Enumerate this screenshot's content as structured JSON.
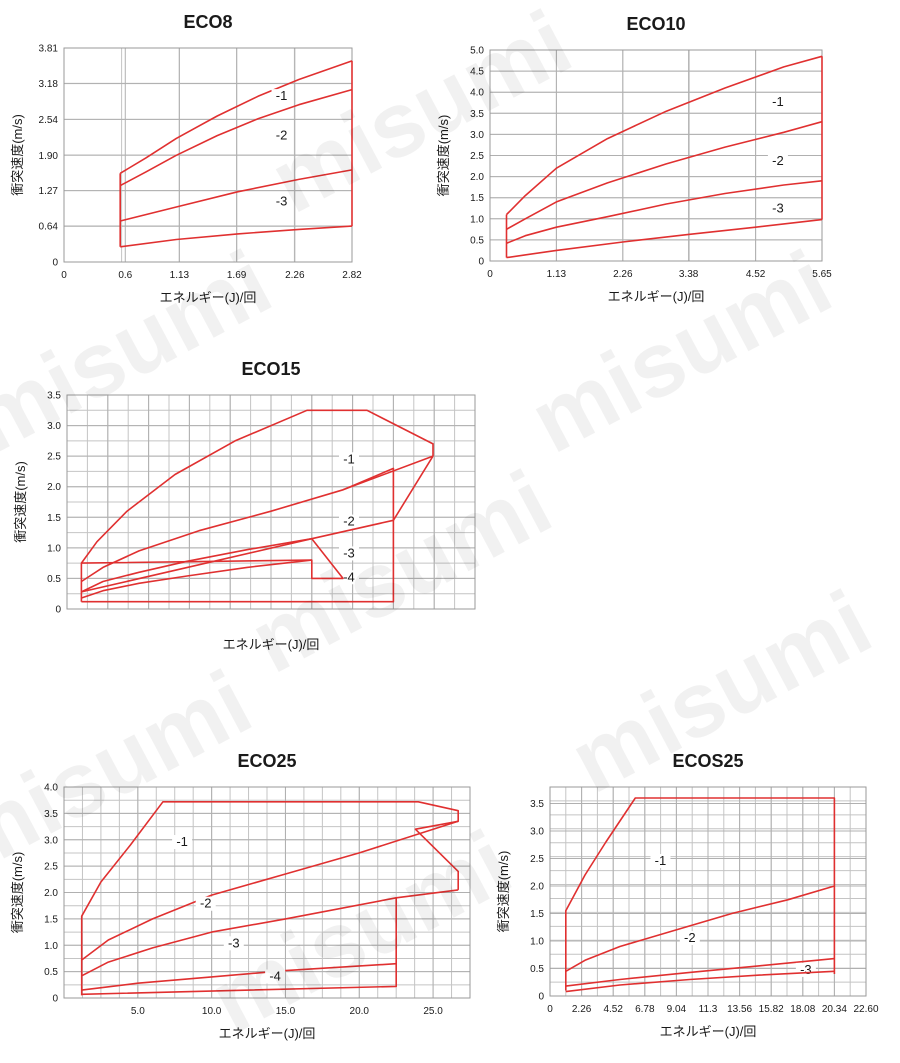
{
  "watermark": "misumi",
  "colors": {
    "curve": "#e03030",
    "grid": "#c4c4c4",
    "frame": "#9a9a9a",
    "text": "#1a1a1a"
  },
  "chart_data": [
    {
      "type": "line",
      "title": "ECO8",
      "xlabel": "エネルギー(J)/回",
      "ylabel": "衝突速度(m/s)",
      "xlim": [
        0,
        2.82
      ],
      "ylim": [
        0,
        3.81
      ],
      "xticks": [
        0,
        0.6,
        1.13,
        1.69,
        2.26,
        2.82
      ],
      "xtick_labels": [
        "0",
        "0.6",
        "1.13",
        "1.69",
        "2.26",
        "2.82"
      ],
      "yticks": [
        0,
        0.64,
        1.27,
        1.9,
        2.54,
        3.18,
        3.81
      ],
      "ytick_labels": [
        "0",
        "0.64",
        "1.27",
        "1.90",
        "2.54",
        "3.18",
        "3.81"
      ],
      "series": [
        {
          "name": "-1",
          "x": [
            0.55,
            0.8,
            1.1,
            1.5,
            1.9,
            2.3,
            2.82
          ],
          "y": [
            1.58,
            1.85,
            2.2,
            2.6,
            2.95,
            3.25,
            3.58
          ],
          "label_pos": [
            2.13,
            2.9
          ]
        },
        {
          "name": "-2",
          "x": [
            0.55,
            0.8,
            1.1,
            1.5,
            1.9,
            2.3,
            2.82
          ],
          "y": [
            1.36,
            1.6,
            1.9,
            2.25,
            2.55,
            2.8,
            3.07
          ],
          "label_pos": [
            2.13,
            2.2
          ]
        },
        {
          "name": "-3",
          "x": [
            0.55,
            1.1,
            1.7,
            2.3,
            2.82
          ],
          "y": [
            0.73,
            0.98,
            1.25,
            1.47,
            1.64
          ],
          "label_pos": [
            2.13,
            1.02
          ]
        },
        {
          "name": "",
          "x": [
            0.55,
            1.1,
            1.7,
            2.3,
            2.82
          ],
          "y": [
            0.27,
            0.4,
            0.5,
            0.58,
            0.64
          ]
        },
        {
          "name": "",
          "x": [
            0.55,
            0.55
          ],
          "y": [
            0.27,
            1.58
          ]
        },
        {
          "name": "",
          "x": [
            2.82,
            2.82
          ],
          "y": [
            0.64,
            3.58
          ]
        }
      ]
    },
    {
      "type": "line",
      "title": "ECO10",
      "xlabel": "エネルギー(J)/回",
      "ylabel": "衝突速度(m/s)",
      "xlim": [
        0,
        5.65
      ],
      "ylim": [
        0,
        5.0
      ],
      "xticks": [
        0,
        1.13,
        2.26,
        3.38,
        4.52,
        5.65
      ],
      "xtick_labels": [
        "0",
        "1.13",
        "2.26",
        "3.38",
        "4.52",
        "5.65"
      ],
      "yticks": [
        0,
        0.5,
        1,
        1.5,
        2,
        2.5,
        3,
        3.5,
        4,
        4.5,
        5
      ],
      "ytick_labels": [
        "0",
        "0.5",
        "1.0",
        "1.5",
        "2.0",
        "2.5",
        "3.0",
        "3.5",
        "4.0",
        "4.5",
        "5.0"
      ],
      "series": [
        {
          "name": "-1",
          "x": [
            0.28,
            0.6,
            1.13,
            2.0,
            3.0,
            4.0,
            5.0,
            5.65
          ],
          "y": [
            1.1,
            1.55,
            2.2,
            2.9,
            3.55,
            4.1,
            4.6,
            4.85
          ],
          "label_pos": [
            4.9,
            3.7
          ]
        },
        {
          "name": "-2",
          "x": [
            0.28,
            0.6,
            1.13,
            2.0,
            3.0,
            4.0,
            5.0,
            5.65
          ],
          "y": [
            0.75,
            1.0,
            1.4,
            1.85,
            2.3,
            2.7,
            3.05,
            3.3
          ],
          "label_pos": [
            4.9,
            2.3
          ]
        },
        {
          "name": "-3",
          "x": [
            0.28,
            0.6,
            1.13,
            2.0,
            3.0,
            4.0,
            5.0,
            5.65
          ],
          "y": [
            0.42,
            0.6,
            0.8,
            1.05,
            1.35,
            1.6,
            1.8,
            1.9
          ],
          "label_pos": [
            4.9,
            1.17
          ]
        },
        {
          "name": "",
          "x": [
            0.28,
            1.13,
            2.26,
            3.38,
            4.52,
            5.65
          ],
          "y": [
            0.08,
            0.25,
            0.45,
            0.63,
            0.8,
            0.98
          ]
        },
        {
          "name": "",
          "x": [
            0.28,
            0.28
          ],
          "y": [
            0.08,
            1.1
          ]
        },
        {
          "name": "",
          "x": [
            5.65,
            5.65
          ],
          "y": [
            0.98,
            4.85
          ]
        }
      ]
    },
    {
      "type": "line",
      "title": "ECO15",
      "xlabel": "エネルギー(J)/回",
      "ylabel": "衝突速度(m/s)",
      "xlim": [
        0,
        34
      ],
      "ylim": [
        0,
        3.5
      ],
      "xticks": [
        0,
        3.4,
        6.8,
        10.2,
        13.6,
        17,
        20.4,
        23.8,
        27.2,
        30.6,
        34
      ],
      "xtick_labels": [],
      "yticks": [
        0,
        0.5,
        1,
        1.5,
        2,
        2.5,
        3,
        3.5
      ],
      "ytick_labels": [
        "0",
        "0.5",
        "1.0",
        "1.5",
        "2.0",
        "2.5",
        "3.0",
        "3.5"
      ],
      "series": [
        {
          "name": "-1",
          "x": [
            1.2,
            2.5,
            5,
            9,
            14,
            20,
            25,
            30.5,
            30.5
          ],
          "y": [
            0.75,
            1.1,
            1.6,
            2.2,
            2.75,
            3.25,
            3.25,
            2.7,
            2.5
          ],
          "label_pos": [
            23.5,
            2.4
          ]
        },
        {
          "name": "-2",
          "x": [
            1.2,
            3,
            6,
            11,
            17,
            23,
            30.5
          ],
          "y": [
            0.45,
            0.68,
            0.95,
            1.28,
            1.6,
            1.95,
            2.5
          ],
          "label_pos": [
            23.5,
            1.38
          ]
        },
        {
          "name": "",
          "x": [
            23,
            27.2,
            27.2,
            30.5
          ],
          "y": [
            1.95,
            2.3,
            1.45,
            2.5
          ]
        },
        {
          "name": "-3",
          "x": [
            1.2,
            3,
            6,
            10,
            15,
            20.4
          ],
          "y": [
            0.28,
            0.45,
            0.6,
            0.78,
            0.97,
            1.15
          ],
          "label_pos": [
            23.5,
            0.86
          ]
        },
        {
          "name": "-4",
          "x": [
            1.2,
            3,
            6,
            10,
            15,
            20.4
          ],
          "y": [
            0.18,
            0.3,
            0.42,
            0.54,
            0.68,
            0.8
          ],
          "label_pos": [
            23.5,
            0.47
          ]
        },
        {
          "name": "",
          "x": [
            1.2,
            20.4,
            20.4,
            27.2
          ],
          "y": [
            0.28,
            1.15,
            1.15,
            1.45
          ]
        },
        {
          "name": "",
          "x": [
            1.2,
            1.2,
            20,
            27.2,
            27.2
          ],
          "y": [
            0.12,
            0.12,
            0.12,
            0.12,
            1.45
          ]
        },
        {
          "name": "",
          "x": [
            1.2,
            1.2,
            20.4,
            20.4,
            20.4,
            23,
            20.4
          ],
          "y": [
            0.12,
            0.75,
            0.8,
            0.8,
            0.5,
            0.5,
            1.15
          ]
        }
      ]
    },
    {
      "type": "line",
      "title": "ECO25",
      "xlabel": "エネルギー(J)/回",
      "ylabel": "衝突速度(m/s)",
      "xlim": [
        0,
        27.5
      ],
      "ylim": [
        0,
        4.0
      ],
      "xticks": [
        0,
        5,
        10,
        15,
        20,
        25
      ],
      "xtick_labels": [
        "",
        "5.0",
        "10.0",
        "15.0",
        "20.0",
        "25.0"
      ],
      "yticks": [
        0,
        0.5,
        1,
        1.5,
        2,
        2.5,
        3,
        3.5,
        4
      ],
      "ytick_labels": [
        "0",
        "0.5",
        "1.0",
        "1.5",
        "2.0",
        "2.5",
        "3.0",
        "3.5",
        "4.0"
      ],
      "series": [
        {
          "name": "-1",
          "x": [
            1.2,
            1.2,
            2.5,
            4.5,
            6.7,
            24,
            26.7,
            26.7,
            23.8,
            26.7,
            26.7
          ],
          "y": [
            0.05,
            1.55,
            2.2,
            2.9,
            3.72,
            3.72,
            3.55,
            3.35,
            3.2,
            2.4,
            2.05
          ],
          "label_pos": [
            8.0,
            2.9
          ]
        },
        {
          "name": "-2",
          "x": [
            1.2,
            3,
            6,
            10,
            15,
            20,
            26.7
          ],
          "y": [
            0.72,
            1.1,
            1.5,
            1.95,
            2.35,
            2.75,
            3.35
          ],
          "label_pos": [
            9.6,
            1.73
          ]
        },
        {
          "name": "-3",
          "x": [
            1.2,
            3,
            6,
            10,
            15,
            22.5,
            26.7
          ],
          "y": [
            0.42,
            0.68,
            0.95,
            1.25,
            1.5,
            1.9,
            2.05
          ],
          "label_pos": [
            11.5,
            0.98
          ]
        },
        {
          "name": "-4",
          "x": [
            1.2,
            5,
            10,
            15,
            22.5
          ],
          "y": [
            0.15,
            0.28,
            0.4,
            0.52,
            0.65
          ],
          "label_pos": [
            14.3,
            0.35
          ]
        },
        {
          "name": "",
          "x": [
            1.2,
            22.5,
            22.5,
            22.5
          ],
          "y": [
            0.07,
            0.22,
            1.9,
            0.65
          ]
        }
      ]
    },
    {
      "type": "line",
      "title": "ECOS25",
      "xlabel": "エネルギー(J)/回",
      "ylabel": "衝突速度(m/s)",
      "xlim": [
        0,
        22.6
      ],
      "ylim": [
        0,
        3.8
      ],
      "xticks": [
        0,
        2.26,
        4.52,
        6.78,
        9.04,
        11.3,
        13.56,
        15.82,
        18.08,
        20.34,
        22.6
      ],
      "xtick_labels": [
        "0",
        "2.26",
        "4.52",
        "6.78",
        "9.04",
        "11.3",
        "13.56",
        "15.82",
        "18.08",
        "20.34",
        "22.60"
      ],
      "yticks": [
        0,
        0.5,
        1,
        1.5,
        2,
        2.5,
        3,
        3.5
      ],
      "ytick_labels": [
        "0",
        "0.5",
        "1.0",
        "1.5",
        "2.0",
        "2.5",
        "3.0",
        "3.5"
      ],
      "series": [
        {
          "name": "-1",
          "x": [
            1.13,
            1.13,
            2.5,
            4,
            6.1,
            20.34,
            20.34
          ],
          "y": [
            0.1,
            1.55,
            2.2,
            2.8,
            3.6,
            3.6,
            0.4
          ],
          "label_pos": [
            7.9,
            2.4
          ]
        },
        {
          "name": "-2",
          "x": [
            1.13,
            2.5,
            5,
            9,
            13,
            17,
            20.34
          ],
          "y": [
            0.45,
            0.65,
            0.9,
            1.2,
            1.5,
            1.75,
            2.0
          ],
          "label_pos": [
            10.0,
            1.0
          ]
        },
        {
          "name": "-3",
          "x": [
            1.13,
            5,
            10,
            15,
            20.34
          ],
          "y": [
            0.18,
            0.3,
            0.43,
            0.55,
            0.68
          ],
          "label_pos": [
            18.3,
            0.42
          ]
        },
        {
          "name": "",
          "x": [
            1.13,
            5,
            10,
            15,
            20.34
          ],
          "y": [
            0.08,
            0.2,
            0.3,
            0.38,
            0.45
          ]
        }
      ]
    }
  ]
}
